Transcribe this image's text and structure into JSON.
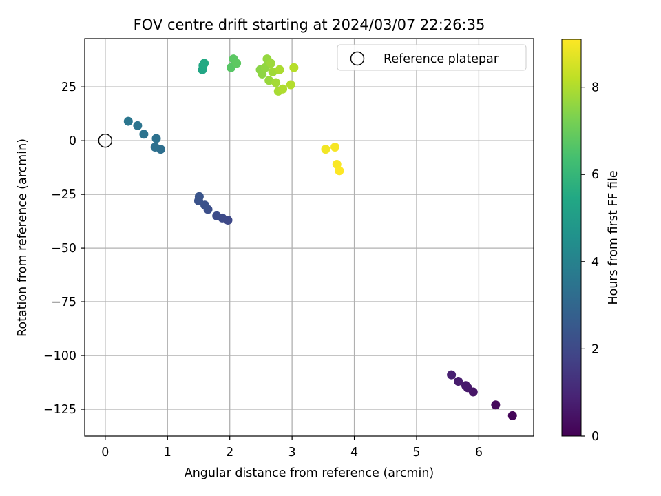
{
  "chart_data": {
    "type": "scatter",
    "title": "FOV centre drift starting at 2024/03/07 22:26:35",
    "xlabel": "Angular distance from reference (arcmin)",
    "ylabel": "Rotation from reference (arcmin)",
    "xlim": [
      -0.33,
      6.88
    ],
    "ylim": [
      -137.5,
      47.5
    ],
    "xticks": [
      0,
      1,
      2,
      3,
      4,
      5,
      6
    ],
    "yticks": [
      -125,
      -100,
      -75,
      -50,
      -25,
      0,
      25
    ],
    "grid": true,
    "legend": {
      "placement": "top-right",
      "entries": [
        "Reference platepar"
      ]
    },
    "reference_point": {
      "x": 0,
      "y": 0,
      "label": "Reference platepar"
    },
    "colorbar": {
      "label": "Hours from first FF file",
      "min": 0,
      "max": 9.1,
      "ticks": [
        0,
        2,
        4,
        6,
        8
      ],
      "colormap": "viridis"
    },
    "points": [
      {
        "x": 6.54,
        "y": -128,
        "hours": 0.1
      },
      {
        "x": 6.27,
        "y": -123,
        "hours": 0.2
      },
      {
        "x": 5.91,
        "y": -117,
        "hours": 0.5
      },
      {
        "x": 5.82,
        "y": -115,
        "hours": 0.6
      },
      {
        "x": 5.79,
        "y": -114,
        "hours": 0.65
      },
      {
        "x": 5.67,
        "y": -112,
        "hours": 0.7
      },
      {
        "x": 5.56,
        "y": -109,
        "hours": 0.8
      },
      {
        "x": 1.97,
        "y": -37,
        "hours": 2.0
      },
      {
        "x": 1.88,
        "y": -36,
        "hours": 2.05
      },
      {
        "x": 1.79,
        "y": -35,
        "hours": 2.1
      },
      {
        "x": 1.65,
        "y": -32,
        "hours": 2.2
      },
      {
        "x": 1.6,
        "y": -30,
        "hours": 2.25
      },
      {
        "x": 1.5,
        "y": -28,
        "hours": 2.3
      },
      {
        "x": 1.51,
        "y": -26,
        "hours": 2.35
      },
      {
        "x": 0.89,
        "y": -4,
        "hours": 3.3
      },
      {
        "x": 0.8,
        "y": -3,
        "hours": 3.35
      },
      {
        "x": 0.82,
        "y": 1,
        "hours": 3.4
      },
      {
        "x": 0.62,
        "y": 3,
        "hours": 3.45
      },
      {
        "x": 0.52,
        "y": 7,
        "hours": 3.5
      },
      {
        "x": 0.37,
        "y": 9,
        "hours": 3.55
      },
      {
        "x": 1.56,
        "y": 33,
        "hours": 5.4
      },
      {
        "x": 1.57,
        "y": 35,
        "hours": 5.45
      },
      {
        "x": 1.59,
        "y": 36,
        "hours": 5.5
      },
      {
        "x": 2.02,
        "y": 34,
        "hours": 6.7
      },
      {
        "x": 2.06,
        "y": 38,
        "hours": 6.75
      },
      {
        "x": 2.11,
        "y": 36,
        "hours": 6.8
      },
      {
        "x": 2.49,
        "y": 33,
        "hours": 7.5
      },
      {
        "x": 2.52,
        "y": 31,
        "hours": 7.55
      },
      {
        "x": 2.57,
        "y": 34,
        "hours": 7.6
      },
      {
        "x": 2.6,
        "y": 38,
        "hours": 7.65
      },
      {
        "x": 2.63,
        "y": 28,
        "hours": 7.7
      },
      {
        "x": 2.66,
        "y": 36,
        "hours": 7.75
      },
      {
        "x": 2.69,
        "y": 32,
        "hours": 7.8
      },
      {
        "x": 2.74,
        "y": 27,
        "hours": 7.85
      },
      {
        "x": 2.78,
        "y": 23,
        "hours": 7.9
      },
      {
        "x": 2.8,
        "y": 33,
        "hours": 7.95
      },
      {
        "x": 2.85,
        "y": 24,
        "hours": 8.0
      },
      {
        "x": 2.98,
        "y": 26,
        "hours": 8.05
      },
      {
        "x": 3.03,
        "y": 34,
        "hours": 8.1
      },
      {
        "x": 3.54,
        "y": -4,
        "hours": 8.95
      },
      {
        "x": 3.69,
        "y": -3,
        "hours": 9.0
      },
      {
        "x": 3.72,
        "y": -11,
        "hours": 9.05
      },
      {
        "x": 3.76,
        "y": -14,
        "hours": 9.1
      }
    ]
  }
}
